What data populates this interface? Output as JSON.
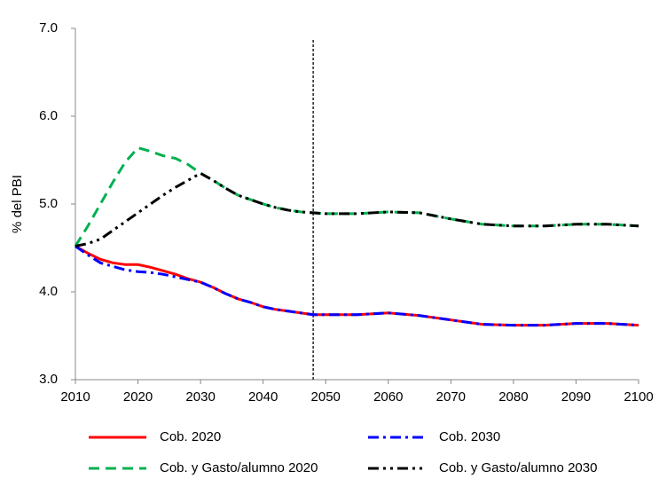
{
  "chart_data": {
    "type": "line",
    "y_label": "% del PBI",
    "x": [
      2010,
      2012,
      2014,
      2016,
      2018,
      2020,
      2022,
      2024,
      2026,
      2028,
      2030,
      2032,
      2034,
      2036,
      2038,
      2040,
      2042,
      2044,
      2046,
      2048,
      2050,
      2055,
      2060,
      2065,
      2070,
      2075,
      2080,
      2085,
      2090,
      2095,
      2100
    ],
    "series": [
      {
        "name": "Cob. 2020",
        "color": "#ff0000",
        "dash": "solid",
        "values": [
          4.52,
          4.44,
          4.37,
          4.33,
          4.31,
          4.31,
          4.28,
          4.24,
          4.2,
          4.15,
          4.11,
          4.05,
          3.98,
          3.92,
          3.88,
          3.83,
          3.8,
          3.78,
          3.76,
          3.74,
          3.74,
          3.74,
          3.76,
          3.73,
          3.68,
          3.63,
          3.62,
          3.62,
          3.64,
          3.64,
          3.62
        ]
      },
      {
        "name": "Cob. 2030",
        "color": "#0000ff",
        "dash": "dashdot",
        "values": [
          4.52,
          4.42,
          4.33,
          4.29,
          4.25,
          4.23,
          4.22,
          4.2,
          4.17,
          4.14,
          4.11,
          4.05,
          3.98,
          3.92,
          3.88,
          3.83,
          3.8,
          3.78,
          3.76,
          3.74,
          3.74,
          3.74,
          3.76,
          3.73,
          3.68,
          3.63,
          3.62,
          3.62,
          3.64,
          3.64,
          3.62
        ]
      },
      {
        "name": "Cob. y Gasto/alumno 2020",
        "color": "#00b050",
        "dash": "dash",
        "values": [
          4.52,
          4.75,
          5.0,
          5.25,
          5.48,
          5.64,
          5.6,
          5.55,
          5.52,
          5.45,
          5.35,
          5.27,
          5.18,
          5.1,
          5.05,
          5.0,
          4.96,
          4.93,
          4.91,
          4.9,
          4.89,
          4.89,
          4.91,
          4.9,
          4.83,
          4.77,
          4.75,
          4.75,
          4.77,
          4.77,
          4.75
        ]
      },
      {
        "name": "Cob. y Gasto/alumno 2030",
        "color": "#000000",
        "dash": "dashdotdot",
        "values": [
          4.52,
          4.55,
          4.6,
          4.7,
          4.8,
          4.9,
          5.0,
          5.1,
          5.19,
          5.27,
          5.35,
          5.27,
          5.18,
          5.1,
          5.05,
          5.0,
          4.96,
          4.93,
          4.91,
          4.9,
          4.89,
          4.89,
          4.91,
          4.9,
          4.83,
          4.77,
          4.75,
          4.75,
          4.77,
          4.77,
          4.75
        ]
      }
    ],
    "vline": 2048,
    "xlim": [
      2010,
      2100
    ],
    "xticks": [
      2010,
      2020,
      2030,
      2040,
      2050,
      2060,
      2070,
      2080,
      2090,
      2100
    ],
    "ylim": [
      3,
      7
    ],
    "yticks": [
      {
        "value": 3,
        "label": "3.0"
      },
      {
        "value": 4,
        "label": "4.0"
      },
      {
        "value": 5,
        "label": "5.0"
      },
      {
        "value": 6,
        "label": "6.0"
      },
      {
        "value": 7,
        "label": "7.0"
      }
    ]
  }
}
